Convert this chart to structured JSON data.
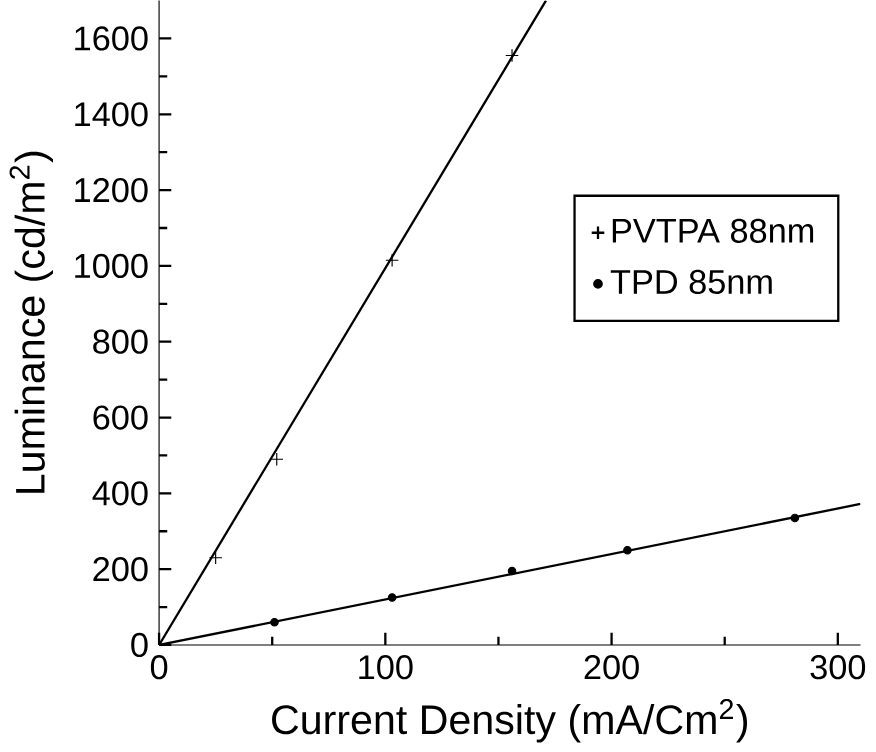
{
  "chart_data": {
    "type": "scatter",
    "xlabel": "Current Density (mA/Cm$^{2}$)",
    "ylabel": "Luminance (cd/m$^{2}$)",
    "xlim": [
      0,
      310
    ],
    "ylim": [
      0,
      1700
    ],
    "xticks": [
      0,
      100,
      200,
      300
    ],
    "yticks": [
      0,
      200,
      400,
      600,
      800,
      1000,
      1200,
      1400,
      1600
    ],
    "legend": "right",
    "grid": false,
    "series": [
      {
        "name": "PVTPA 88nm",
        "color": "#000000",
        "marker": "cross",
        "x": [
          25,
          52,
          103,
          156
        ],
        "values": [
          230,
          490,
          1015,
          1555
        ]
      },
      {
        "name": "TPD 85nm",
        "color": "#000000",
        "marker": "circle",
        "x": [
          51,
          103,
          156,
          207,
          281
        ],
        "values": [
          60,
          125,
          195,
          250,
          335
        ]
      },
      {
        "type": "line",
        "color": "#000000",
        "marker": "none",
        "x": [
          0,
          171
        ],
        "values": [
          0,
          1700
        ]
      },
      {
        "type": "line",
        "color": "#000000",
        "marker": "none",
        "x": [
          0,
          310
        ],
        "values": [
          0,
          372
        ]
      }
    ]
  }
}
